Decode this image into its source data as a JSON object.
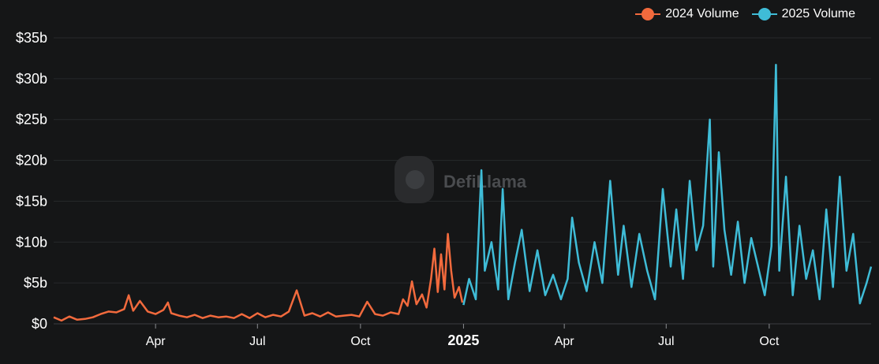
{
  "legend": {
    "series_2024": "2024 Volume",
    "series_2025": "2025 Volume"
  },
  "watermark": {
    "text": "DefiLlama"
  },
  "colors": {
    "series_2024": "#f26a3d",
    "series_2025": "#3fbcd7",
    "background": "#151617",
    "gridline": "#26282b"
  },
  "chart_data": {
    "type": "line",
    "ylim": [
      0,
      35
    ],
    "y_unit": "billions USD",
    "yticks": [
      {
        "value": 0,
        "label": "$0"
      },
      {
        "value": 5,
        "label": "$5b"
      },
      {
        "value": 10,
        "label": "$10b"
      },
      {
        "value": 15,
        "label": "$15b"
      },
      {
        "value": 20,
        "label": "$20b"
      },
      {
        "value": 25,
        "label": "$25b"
      },
      {
        "value": 30,
        "label": "$30b"
      },
      {
        "value": 35,
        "label": "$35b"
      }
    ],
    "xlim": [
      "2024-01-01",
      "2025-12-31"
    ],
    "xticks": [
      {
        "date": "2024-04-01",
        "label": "Apr",
        "bold": false
      },
      {
        "date": "2024-07-01",
        "label": "Jul",
        "bold": false
      },
      {
        "date": "2024-10-01",
        "label": "Oct",
        "bold": false
      },
      {
        "date": "2025-01-01",
        "label": "2025",
        "bold": true
      },
      {
        "date": "2025-04-01",
        "label": "Apr",
        "bold": false
      },
      {
        "date": "2025-07-01",
        "label": "Jul",
        "bold": false
      },
      {
        "date": "2025-10-01",
        "label": "Oct",
        "bold": false
      }
    ],
    "grid": true,
    "legend_position": "top-right",
    "series": [
      {
        "name": "2024 Volume",
        "x": [
          "2024-01-01",
          "2024-01-08",
          "2024-01-15",
          "2024-01-22",
          "2024-01-29",
          "2024-02-05",
          "2024-02-12",
          "2024-02-19",
          "2024-02-26",
          "2024-03-04",
          "2024-03-08",
          "2024-03-12",
          "2024-03-18",
          "2024-03-25",
          "2024-04-01",
          "2024-04-08",
          "2024-04-12",
          "2024-04-15",
          "2024-04-22",
          "2024-04-29",
          "2024-05-06",
          "2024-05-13",
          "2024-05-20",
          "2024-05-27",
          "2024-06-03",
          "2024-06-10",
          "2024-06-17",
          "2024-06-24",
          "2024-07-01",
          "2024-07-08",
          "2024-07-15",
          "2024-07-22",
          "2024-07-29",
          "2024-08-05",
          "2024-08-12",
          "2024-08-19",
          "2024-08-26",
          "2024-09-02",
          "2024-09-09",
          "2024-09-16",
          "2024-09-23",
          "2024-09-30",
          "2024-10-07",
          "2024-10-14",
          "2024-10-21",
          "2024-10-28",
          "2024-11-04",
          "2024-11-08",
          "2024-11-12",
          "2024-11-16",
          "2024-11-20",
          "2024-11-25",
          "2024-11-29",
          "2024-12-03",
          "2024-12-06",
          "2024-12-09",
          "2024-12-12",
          "2024-12-15",
          "2024-12-18",
          "2024-12-21",
          "2024-12-24",
          "2024-12-28",
          "2024-12-31"
        ],
        "values": [
          0.8,
          0.4,
          0.9,
          0.5,
          0.6,
          0.8,
          1.2,
          1.5,
          1.4,
          1.8,
          3.5,
          1.6,
          2.8,
          1.5,
          1.2,
          1.7,
          2.6,
          1.3,
          1.0,
          0.8,
          1.1,
          0.7,
          1.0,
          0.8,
          0.9,
          0.7,
          1.2,
          0.7,
          1.3,
          0.8,
          1.1,
          0.9,
          1.5,
          4.1,
          1.0,
          1.3,
          0.9,
          1.4,
          0.9,
          1.0,
          1.1,
          0.9,
          2.7,
          1.2,
          1.0,
          1.4,
          1.2,
          3.0,
          2.2,
          5.2,
          2.4,
          3.6,
          2.0,
          5.5,
          9.2,
          3.9,
          8.5,
          4.2,
          11.0,
          6.5,
          3.2,
          4.5,
          2.6
        ]
      },
      {
        "name": "2025 Volume",
        "x": [
          "2025-01-01",
          "2025-01-06",
          "2025-01-12",
          "2025-01-17",
          "2025-01-20",
          "2025-01-26",
          "2025-02-01",
          "2025-02-05",
          "2025-02-10",
          "2025-02-16",
          "2025-02-22",
          "2025-03-01",
          "2025-03-08",
          "2025-03-15",
          "2025-03-22",
          "2025-03-29",
          "2025-04-04",
          "2025-04-08",
          "2025-04-14",
          "2025-04-21",
          "2025-04-28",
          "2025-05-05",
          "2025-05-12",
          "2025-05-19",
          "2025-05-24",
          "2025-05-31",
          "2025-06-07",
          "2025-06-14",
          "2025-06-21",
          "2025-06-28",
          "2025-07-05",
          "2025-07-10",
          "2025-07-16",
          "2025-07-22",
          "2025-07-28",
          "2025-08-03",
          "2025-08-09",
          "2025-08-12",
          "2025-08-17",
          "2025-08-22",
          "2025-08-28",
          "2025-09-03",
          "2025-09-09",
          "2025-09-15",
          "2025-09-21",
          "2025-09-27",
          "2025-10-03",
          "2025-10-07",
          "2025-10-10",
          "2025-10-16",
          "2025-10-22",
          "2025-10-28",
          "2025-11-03",
          "2025-11-09",
          "2025-11-15",
          "2025-11-21",
          "2025-11-27",
          "2025-12-03",
          "2025-12-09",
          "2025-12-15",
          "2025-12-21",
          "2025-12-27",
          "2025-12-31"
        ],
        "values": [
          2.3,
          5.5,
          3.0,
          18.8,
          6.5,
          10.0,
          4.2,
          16.5,
          3.0,
          7.5,
          11.5,
          4.0,
          9.0,
          3.5,
          6.0,
          3.0,
          5.5,
          13.0,
          7.5,
          4.0,
          10.0,
          5.0,
          17.5,
          6.0,
          12.0,
          4.5,
          11.0,
          6.5,
          3.0,
          16.5,
          7.0,
          14.0,
          5.5,
          17.5,
          9.0,
          12.0,
          25.0,
          7.0,
          21.0,
          11.5,
          6.0,
          12.5,
          5.0,
          10.5,
          7.0,
          3.5,
          9.5,
          31.7,
          6.5,
          18.0,
          3.5,
          12.0,
          5.5,
          9.0,
          3.0,
          14.0,
          4.5,
          18.0,
          6.5,
          11.0,
          2.5,
          5.0,
          7.0
        ]
      }
    ]
  }
}
